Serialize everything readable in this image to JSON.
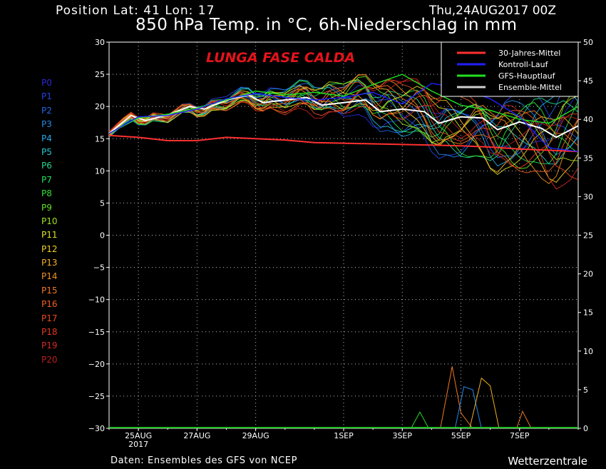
{
  "header": {
    "position": "Position   Lat: 41 Lon: 17",
    "date": "Thu,24AUG2017 00Z",
    "title": "850 hPa Temp. in °C, 6h-Niederschlag in mm"
  },
  "footer": {
    "source": "Daten: Ensembles des GFS von NCEP",
    "brand": "Wetterzentrale"
  },
  "annotation": "LUNGA FASE CALDA",
  "members": [
    {
      "label": "P0",
      "color": "#2a2ad8"
    },
    {
      "label": "P1",
      "color": "#2244e0"
    },
    {
      "label": "P2",
      "color": "#2266e8"
    },
    {
      "label": "P3",
      "color": "#2288e8"
    },
    {
      "label": "P4",
      "color": "#22a8e8"
    },
    {
      "label": "P5",
      "color": "#22c8d0"
    },
    {
      "label": "P6",
      "color": "#20d890"
    },
    {
      "label": "P7",
      "color": "#20e060"
    },
    {
      "label": "P8",
      "color": "#30e030"
    },
    {
      "label": "P9",
      "color": "#60e020"
    },
    {
      "label": "P10",
      "color": "#a0e020"
    },
    {
      "label": "P11",
      "color": "#e0e020"
    },
    {
      "label": "P12",
      "color": "#f0d020"
    },
    {
      "label": "P13",
      "color": "#f0b020"
    },
    {
      "label": "P14",
      "color": "#f09020"
    },
    {
      "label": "P15",
      "color": "#f07820"
    },
    {
      "label": "P16",
      "color": "#f06020"
    },
    {
      "label": "P17",
      "color": "#e84a20"
    },
    {
      "label": "P18",
      "color": "#e03a20"
    },
    {
      "label": "P19",
      "color": "#d02a20"
    },
    {
      "label": "P20",
      "color": "#b81e1e"
    }
  ],
  "chart_data": {
    "type": "line",
    "title": "850 hPa Temp. in °C, 6h-Niederschlag in mm",
    "x_ticks": [
      {
        "day": 1,
        "label": "25AUG",
        "sub": "2017"
      },
      {
        "day": 3,
        "label": "27AUG"
      },
      {
        "day": 5,
        "label": "29AUG"
      },
      {
        "day": 8,
        "label": "1SEP"
      },
      {
        "day": 10,
        "label": "3SEP"
      },
      {
        "day": 12,
        "label": "5SEP"
      },
      {
        "day": 14,
        "label": "7SEP"
      }
    ],
    "xlim": [
      0,
      16
    ],
    "ylim_left": [
      -30,
      30
    ],
    "ylim_right": [
      0,
      50
    ],
    "yticks_left": [
      30,
      25,
      20,
      15,
      10,
      5,
      0,
      -5,
      -10,
      -15,
      -20,
      -25,
      -30
    ],
    "yticks_right": [
      50,
      45,
      40,
      35,
      30,
      25,
      20,
      15,
      10,
      5,
      0
    ],
    "grid": true,
    "legend_position": "top-right",
    "legend": [
      {
        "name": "30-Jahres-Mittel",
        "color": "#ff3030"
      },
      {
        "name": "Kontroll-Lauf",
        "color": "#2020ff"
      },
      {
        "name": "GFS-Hauptlauf",
        "color": "#20e020"
      },
      {
        "name": "Ensemble-Mittel",
        "color": "#d0d0d0"
      }
    ],
    "series": [
      {
        "name": "30-Jahres-Mittel",
        "color": "#ff3030",
        "x": [
          0,
          1,
          2,
          3,
          4,
          5,
          6,
          7,
          8,
          9,
          10,
          11,
          12,
          13,
          14,
          15,
          16
        ],
        "values": [
          15.5,
          15.2,
          14.7,
          14.7,
          15.2,
          15.0,
          14.8,
          14.4,
          14.3,
          14.2,
          14.1,
          14.0,
          13.9,
          13.7,
          13.4,
          13.2,
          13.0
        ]
      },
      {
        "name": "Ensemble-Mittel",
        "color": "#ffffff",
        "x": [
          0,
          0.75,
          1.25,
          2,
          2.75,
          3.25,
          4,
          4.75,
          5.25,
          6,
          6.75,
          7.25,
          8,
          8.75,
          9.25,
          10,
          10.75,
          11.25,
          12,
          12.75,
          13.25,
          14,
          14.75,
          15.25,
          16
        ],
        "values": [
          15.8,
          18.6,
          17.8,
          18.7,
          20.0,
          19.6,
          21.0,
          21.8,
          20.6,
          21.0,
          21.4,
          20.2,
          20.6,
          21.0,
          19.2,
          19.6,
          19.2,
          17.4,
          18.4,
          18.2,
          16.4,
          17.6,
          16.6,
          15.2,
          17.0
        ]
      },
      {
        "name": "GFS-Hauptlauf",
        "color": "#20e020",
        "x": [
          0,
          1,
          2,
          3,
          4,
          5,
          6,
          7,
          8,
          9,
          10,
          11,
          12,
          13,
          14,
          15,
          16
        ],
        "values": [
          15.8,
          18.2,
          18.8,
          19.8,
          21.0,
          22.4,
          21.8,
          22.2,
          21.6,
          23.4,
          25.0,
          22.4,
          20.2,
          19.4,
          18.0,
          17.4,
          20.0
        ]
      },
      {
        "name": "Kontroll-Lauf",
        "color": "#2020ff",
        "x": [
          0,
          1,
          2,
          3,
          4,
          5,
          6,
          7,
          8,
          9,
          10,
          11,
          12,
          13,
          14,
          15,
          16
        ],
        "values": [
          15.8,
          18.4,
          18.6,
          19.6,
          21.2,
          22.0,
          21.4,
          21.0,
          21.4,
          22.2,
          20.4,
          23.6,
          22.8,
          21.2,
          18.4,
          13.6,
          13.0
        ]
      }
    ],
    "precipitation_mm": [
      {
        "x": [
          10.3,
          10.6,
          10.9
        ],
        "values": [
          0,
          2.1,
          0
        ],
        "color": "#20e020"
      },
      {
        "x": [
          11.3,
          11.7,
          12.0,
          12.4
        ],
        "values": [
          0,
          8.0,
          2.0,
          0
        ],
        "color": "#f07820"
      },
      {
        "x": [
          11.8,
          12.1,
          12.4,
          12.7
        ],
        "values": [
          0,
          5.4,
          5.0,
          0
        ],
        "color": "#2288e8"
      },
      {
        "x": [
          12.3,
          12.7,
          13.0,
          13.3
        ],
        "values": [
          0,
          6.5,
          5.5,
          0
        ],
        "color": "#f0b020"
      },
      {
        "x": [
          13.9,
          14.1,
          14.4
        ],
        "values": [
          0,
          2.2,
          0
        ],
        "color": "#f07820"
      }
    ]
  }
}
